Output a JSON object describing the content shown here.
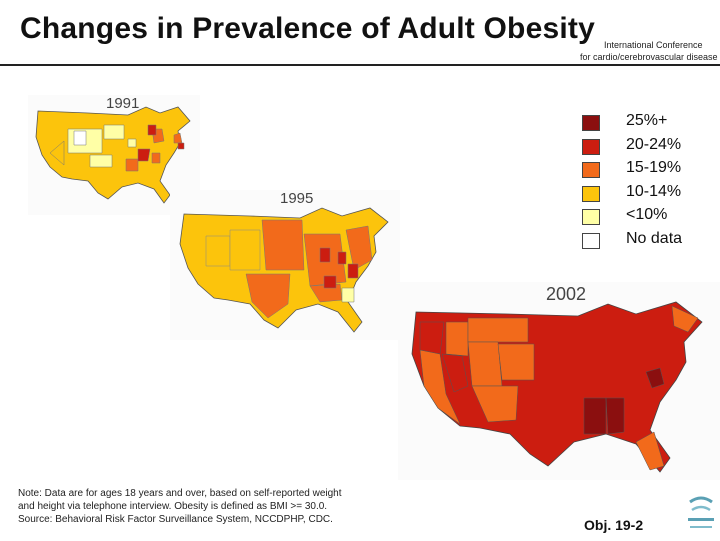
{
  "header": {
    "title": "Changes in Prevalence of Adult Obesity",
    "conference_line1": "International Conference",
    "conference_line2": "for cardio/cerebrovascular disease"
  },
  "colors": {
    "c25": "#8b0f0f",
    "c20": "#cc1d10",
    "c15": "#f26a1b",
    "c10": "#fcc40c",
    "c0": "#ffffa6",
    "nodata": "#ffffff"
  },
  "legend": [
    {
      "label": "25%+",
      "color": "#8b0f0f"
    },
    {
      "label": "20-24%",
      "color": "#cc1d10"
    },
    {
      "label": "15-19%",
      "color": "#f26a1b"
    },
    {
      "label": "10-14%",
      "color": "#fcc40c"
    },
    {
      "label": "<10%",
      "color": "#ffffa6"
    },
    {
      "label": "No data",
      "color": "#ffffff"
    }
  ],
  "maps": [
    {
      "year": "1991"
    },
    {
      "year": "1995"
    },
    {
      "year": "2002"
    }
  ],
  "note": {
    "line1": "Note: Data are for ages 18 years and over, based on self-reported weight",
    "line2": "and height via telephone interview. Obesity is defined as BMI >= 30.0.",
    "line3": "Source: Behavioral Risk Factor Surveillance System, NCCDPHP, CDC."
  },
  "footer": {
    "objective": "Obj. 19-2"
  },
  "icons": {
    "logo": "agency-logo-icon"
  }
}
